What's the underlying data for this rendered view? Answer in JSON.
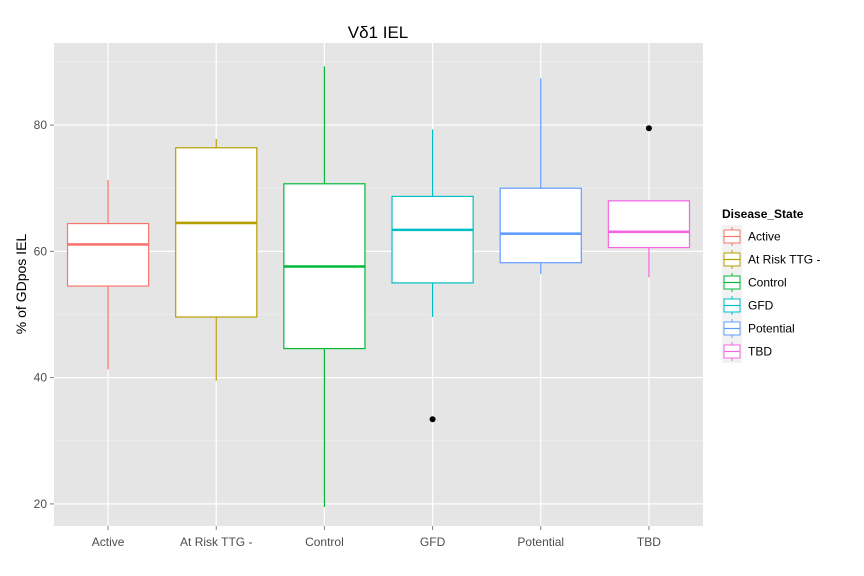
{
  "chart_data": {
    "type": "box",
    "title": "Vδ1 IEL",
    "xlabel": "",
    "ylabel": "% of GDpos IEL",
    "ylim": [
      16.5,
      93
    ],
    "yticks": [
      20,
      40,
      60,
      80
    ],
    "grid": true,
    "legend": {
      "title": "Disease_State",
      "position": "right"
    },
    "categories": [
      "Active",
      "At Risk TTG -",
      "Control",
      "GFD",
      "Potential",
      "TBD"
    ],
    "series": [
      {
        "name": "Active",
        "color": "#F8766D",
        "min": 41.3,
        "q1": 54.5,
        "median": 61.1,
        "q3": 64.4,
        "max": 71.3,
        "outliers": []
      },
      {
        "name": "At Risk TTG -",
        "color": "#B79F00",
        "min": 39.5,
        "q1": 49.6,
        "median": 64.5,
        "q3": 76.4,
        "max": 77.8,
        "outliers": []
      },
      {
        "name": "Control",
        "color": "#00BA38",
        "min": 19.5,
        "q1": 44.6,
        "median": 57.6,
        "q3": 70.7,
        "max": 89.3,
        "outliers": []
      },
      {
        "name": "GFD",
        "color": "#00BFC4",
        "min": 49.6,
        "q1": 55.0,
        "median": 63.4,
        "q3": 68.7,
        "max": 79.3,
        "outliers": [
          33.4
        ]
      },
      {
        "name": "Potential",
        "color": "#619CFF",
        "min": 56.4,
        "q1": 58.2,
        "median": 62.8,
        "q3": 70.0,
        "max": 87.4,
        "outliers": []
      },
      {
        "name": "TBD",
        "color": "#F564E3",
        "min": 55.9,
        "q1": 60.6,
        "median": 63.1,
        "q3": 68.0,
        "max": 68.0,
        "outliers": [
          79.5
        ]
      }
    ]
  }
}
